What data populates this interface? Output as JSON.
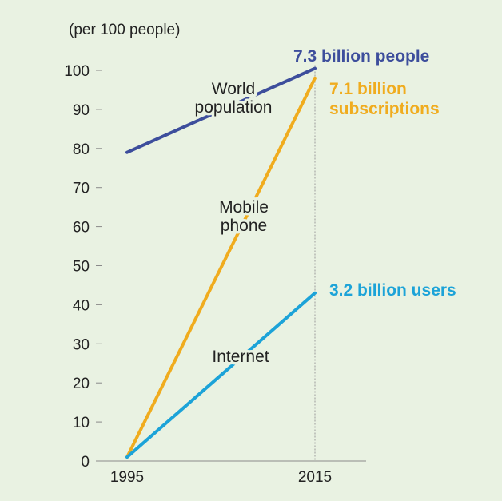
{
  "chart_data": {
    "type": "line",
    "ylabel": "(per 100 people)",
    "x": [
      "1995",
      "2015"
    ],
    "ylim": [
      0,
      100
    ],
    "yticks": [
      0,
      10,
      20,
      30,
      40,
      50,
      60,
      70,
      80,
      90,
      100
    ],
    "grid": false,
    "series": [
      {
        "name": "World population",
        "label_lines": [
          "World",
          "population"
        ],
        "values": [
          79,
          100.5
        ],
        "color": "#3d4e9c",
        "end_label": [
          "7.3 billion people"
        ]
      },
      {
        "name": "Mobile phone",
        "label_lines": [
          "Mobile",
          "phone"
        ],
        "values": [
          1,
          98
        ],
        "color": "#f0ac1e",
        "end_label": [
          "7.1 billion",
          "subscriptions"
        ]
      },
      {
        "name": "Internet",
        "label_lines": [
          "Internet"
        ],
        "values": [
          1,
          43
        ],
        "color": "#1ca3d8",
        "end_label": [
          "3.2 billion users"
        ]
      }
    ]
  }
}
